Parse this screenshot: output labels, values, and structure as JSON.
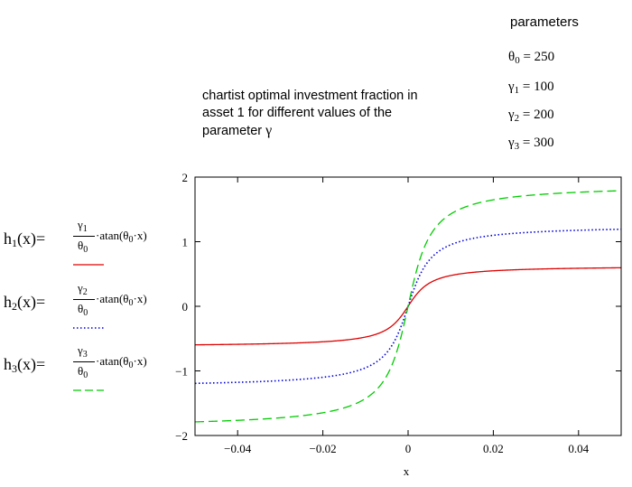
{
  "parameters": {
    "title": "parameters",
    "items": [
      {
        "sym": "θ",
        "sub": "0",
        "eq": " = 250"
      },
      {
        "sym": "γ",
        "sub": "1",
        "eq": " = 100"
      },
      {
        "sym": "γ",
        "sub": "2",
        "eq": " = 200"
      },
      {
        "sym": "γ",
        "sub": "3",
        "eq": " = 300"
      }
    ]
  },
  "description": {
    "line1": "chartist optimal investment fraction in",
    "line2": "asset 1 for different values of the",
    "line3_prefix": "parameter ",
    "line3_symbol": "γ"
  },
  "formulas": [
    {
      "name": "h",
      "sub": "1",
      "arg": "(x)=",
      "num_sym": "γ",
      "num_sub": "1",
      "den_sym": "θ",
      "den_sub": "0",
      "rhs_pre": "·atan(θ",
      "rhs_sub": "0",
      "rhs_post": "·x)"
    },
    {
      "name": "h",
      "sub": "2",
      "arg": "(x)=",
      "num_sym": "γ",
      "num_sub": "2",
      "den_sym": "θ",
      "den_sub": "0",
      "rhs_pre": "·atan(θ",
      "rhs_sub": "0",
      "rhs_post": "·x)"
    },
    {
      "name": "h",
      "sub": "3",
      "arg": "(x)=",
      "num_sym": "γ",
      "num_sub": "3",
      "den_sym": "θ",
      "den_sub": "0",
      "rhs_pre": "·atan(θ",
      "rhs_sub": "0",
      "rhs_post": "·x)"
    }
  ],
  "chart_data": {
    "type": "line",
    "title": "",
    "xlabel": "x",
    "ylabel": "",
    "xlim": [
      -0.05,
      0.05
    ],
    "ylim": [
      -2,
      2
    ],
    "xticks": [
      -0.04,
      -0.02,
      0,
      0.02,
      0.04
    ],
    "xtick_labels": [
      "−0.04",
      "−0.02",
      "0",
      "0.02",
      "0.04"
    ],
    "yticks": [
      -2,
      -1,
      0,
      1,
      2
    ],
    "ytick_labels": [
      "−2",
      "−1",
      "0",
      "1",
      "2"
    ],
    "grid": false,
    "theta0": 250,
    "series": [
      {
        "gamma": 100,
        "color": "#dd0000",
        "dash": "solid"
      },
      {
        "gamma": 200,
        "color": "#0000dd",
        "dash": "dotted"
      },
      {
        "gamma": 300,
        "color": "#00cc00",
        "dash": "dashed"
      }
    ]
  }
}
